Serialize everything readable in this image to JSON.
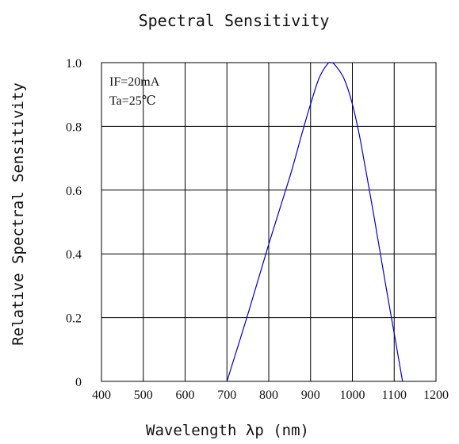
{
  "chart_data": {
    "type": "line",
    "title": "Spectral Sensitivity",
    "xlabel": "Wavelength  λp  (nm)",
    "ylabel": "Relative Spectral Sensitivity",
    "xlim": [
      400,
      1200
    ],
    "ylim": [
      0,
      1.0
    ],
    "x_ticks": [
      "400",
      "500",
      "600",
      "700",
      "800",
      "900",
      "1000",
      "1100",
      "1200"
    ],
    "y_ticks": [
      "0",
      "0.2",
      "0.4",
      "0.6",
      "0.8",
      "1.0"
    ],
    "grid": true,
    "annotations": [
      "IF=20mA",
      "Ta=25℃"
    ],
    "series": [
      {
        "color": "#0000cc",
        "x": [
          700,
          750,
          800,
          850,
          880,
          900,
          920,
          940,
          950,
          960,
          980,
          1000,
          1020,
          1050,
          1080,
          1100,
          1120
        ],
        "y": [
          0.0,
          0.21,
          0.43,
          0.64,
          0.78,
          0.87,
          0.95,
          0.995,
          1.0,
          0.99,
          0.95,
          0.87,
          0.75,
          0.53,
          0.3,
          0.15,
          0.0
        ]
      }
    ]
  }
}
